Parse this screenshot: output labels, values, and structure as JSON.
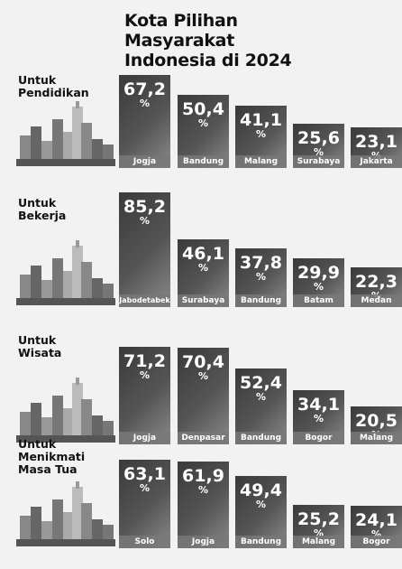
{
  "title": "Kota Pilihan Masyarakat Indonesia di 2024",
  "chart_data": [
    {
      "type": "bar",
      "title": "Untuk Pendidikan",
      "unit": "%",
      "color": "#3a3a3a",
      "categories": [
        "Jogja",
        "Bandung",
        "Malang",
        "Surabaya",
        "Jakarta"
      ],
      "values": [
        67.2,
        50.4,
        41.1,
        25.6,
        23.1
      ],
      "value_labels": [
        "67,2",
        "50,4",
        "41,1",
        "25,6",
        "23,1"
      ]
    },
    {
      "type": "bar",
      "title": "Untuk Bekerja",
      "unit": "%",
      "color": "#3a3a3a",
      "categories": [
        "Jabodetabek",
        "Surabaya",
        "Bandung",
        "Batam",
        "Medan"
      ],
      "values": [
        85.2,
        46.1,
        37.8,
        29.9,
        22.3
      ],
      "value_labels": [
        "85,2",
        "46,1",
        "37,8",
        "29,9",
        "22,3"
      ]
    },
    {
      "type": "bar",
      "title": "Untuk Wisata",
      "unit": "%",
      "color": "#3a3a3a",
      "categories": [
        "Jogja",
        "Denpasar",
        "Bandung",
        "Bogor",
        "Malang"
      ],
      "values": [
        71.2,
        70.4,
        52.4,
        34.1,
        20.5
      ],
      "value_labels": [
        "71,2",
        "70,4",
        "52,4",
        "34,1",
        "20,5"
      ]
    },
    {
      "type": "bar",
      "title": "Untuk Menikmati Masa Tua",
      "unit": "%",
      "color": "#3a3a3a",
      "categories": [
        "Solo",
        "Jogja",
        "Bandung",
        "Malang",
        "Bogor"
      ],
      "values": [
        63.1,
        61.9,
        49.4,
        25.2,
        24.1
      ],
      "value_labels": [
        "63,1",
        "61,9",
        "49,4",
        "25,2",
        "24,1"
      ]
    }
  ]
}
